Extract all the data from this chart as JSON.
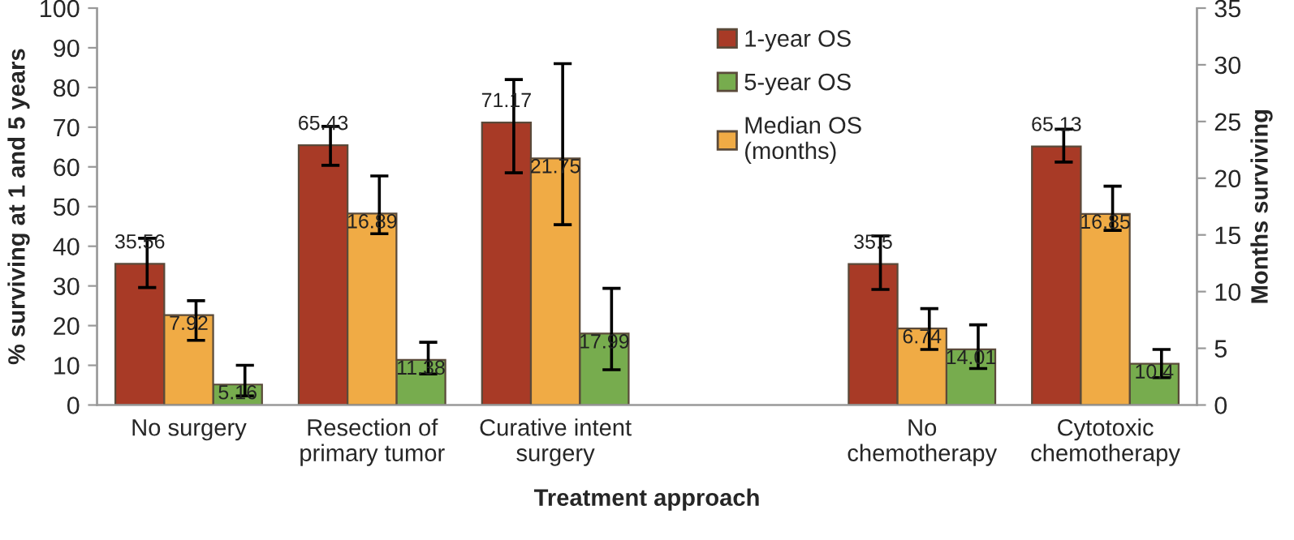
{
  "chart_data": {
    "type": "bar",
    "xlabel": "Treatment approach",
    "ylabel": "% surviving at 1 and 5 years",
    "y2label": "Months surviving",
    "categories": [
      "No surgery",
      "Resection of\nprimary tumor",
      "Curative intent\nsurgery",
      null,
      "No\nchemotherapy",
      "Cytotoxic\nchemotherapy"
    ],
    "series": [
      {
        "name": "1-year OS",
        "color": "#a83a26",
        "values": [
          35.56,
          65.43,
          71.17,
          null,
          35.5,
          65.13
        ],
        "errors": [
          [
            29.6,
            42
          ],
          [
            60.4,
            70.2
          ],
          [
            58.5,
            82
          ],
          null,
          [
            29.1,
            42.6
          ],
          [
            61.2,
            69.5
          ]
        ]
      },
      {
        "name": "Median OS\n(months)",
        "color": "#f0ab45",
        "axis": "y2",
        "values": [
          7.92,
          16.89,
          21.75,
          null,
          6.74,
          16.85
        ],
        "errors": [
          [
            5.7,
            9.2
          ],
          [
            15.1,
            20.2
          ],
          [
            15.9,
            30.1
          ],
          null,
          [
            4.9,
            8.5
          ],
          [
            15.4,
            19.3
          ]
        ]
      },
      {
        "name": "5-year OS",
        "color": "#77ac4e",
        "values": [
          5.16,
          11.38,
          17.99,
          null,
          14.01,
          10.4
        ],
        "errors": [
          [
            2.3,
            10
          ],
          [
            7.8,
            15.8
          ],
          [
            8.9,
            29.4
          ],
          null,
          [
            9.2,
            20.2
          ],
          [
            6.9,
            14
          ]
        ]
      }
    ],
    "ylim": [
      0,
      100
    ],
    "yticks": [
      0,
      10,
      20,
      30,
      40,
      50,
      60,
      70,
      80,
      90,
      100
    ],
    "y2lim": [
      0,
      35
    ],
    "y2ticks": [
      0,
      5,
      10,
      15,
      20,
      25,
      30,
      35
    ],
    "data_labels": true,
    "legend": "top",
    "grid": false
  }
}
